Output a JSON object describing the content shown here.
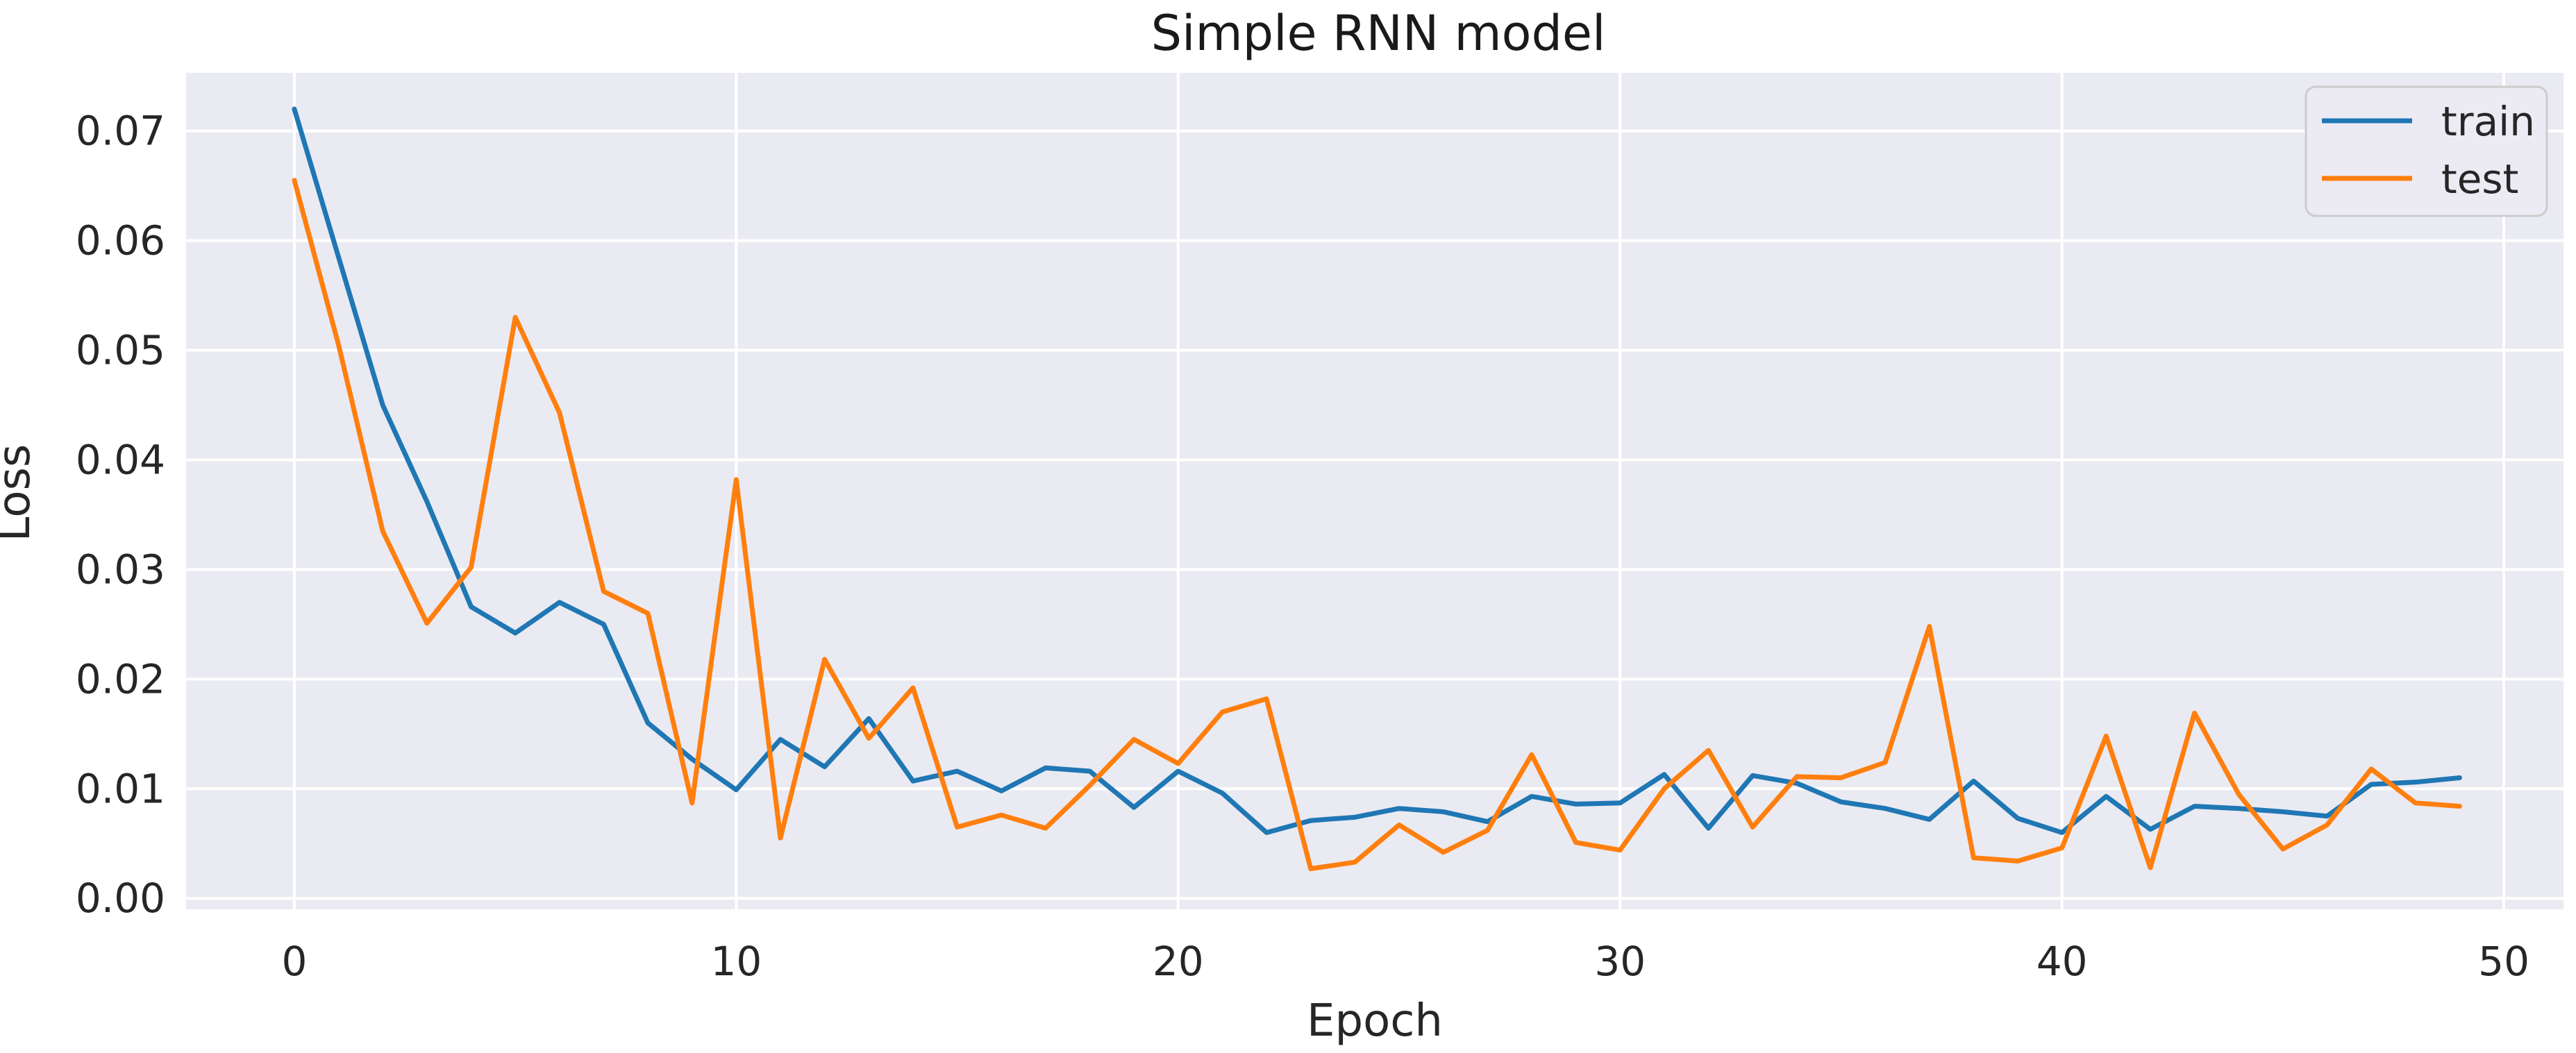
{
  "figure": {
    "title": "Simple RNN model"
  },
  "legend": {
    "position": "upper right",
    "items": [
      {
        "label": "train",
        "color": "#1f77b4"
      },
      {
        "label": "test",
        "color": "#ff7f0e"
      }
    ]
  },
  "style": {
    "plot_background": "#eaeaf2",
    "gridline_color": "#ffffff",
    "text_color": "#262626",
    "legend_face": "#ecebf3",
    "legend_edge": "#cccccc",
    "train_color": "#1f77b4",
    "test_color": "#ff7f0e"
  },
  "chart_data": {
    "type": "line",
    "title": "Simple RNN model",
    "xlabel": "Epoch",
    "ylabel": "Loss",
    "grid": "on",
    "legend_position": "upper right",
    "xlim": [
      -2.45,
      51.35
    ],
    "ylim": [
      -0.001,
      0.0753
    ],
    "xticks": {
      "values": [
        0,
        10,
        20,
        30,
        40,
        50
      ],
      "labels": [
        "0",
        "10",
        "20",
        "30",
        "40",
        "50"
      ]
    },
    "yticks": {
      "values": [
        0.0,
        0.01,
        0.02,
        0.03,
        0.04,
        0.05,
        0.06,
        0.07
      ],
      "labels": [
        "0.00",
        "0.01",
        "0.02",
        "0.03",
        "0.04",
        "0.05",
        "0.06",
        "0.07"
      ]
    },
    "x": [
      0,
      1,
      2,
      3,
      4,
      5,
      6,
      7,
      8,
      9,
      10,
      11,
      12,
      13,
      14,
      15,
      16,
      17,
      18,
      19,
      20,
      21,
      22,
      23,
      24,
      25,
      26,
      27,
      28,
      29,
      30,
      31,
      32,
      33,
      34,
      35,
      36,
      37,
      38,
      39,
      40,
      41,
      42,
      43,
      44,
      45,
      46,
      47,
      48,
      49
    ],
    "series": [
      {
        "name": "train",
        "color": "#1f77b4",
        "values": [
          0.072,
          0.0585,
          0.045,
          0.0362,
          0.0266,
          0.0242,
          0.027,
          0.025,
          0.016,
          0.0127,
          0.0099,
          0.0145,
          0.012,
          0.0164,
          0.0107,
          0.0116,
          0.0098,
          0.0119,
          0.0116,
          0.0083,
          0.0116,
          0.0096,
          0.006,
          0.0071,
          0.0074,
          0.0082,
          0.0079,
          0.007,
          0.0093,
          0.0086,
          0.0087,
          0.0113,
          0.0064,
          0.0112,
          0.0105,
          0.0088,
          0.0082,
          0.0072,
          0.0107,
          0.0073,
          0.006,
          0.0093,
          0.0063,
          0.0084,
          0.0082,
          0.0079,
          0.0075,
          0.0104,
          0.0106,
          0.011
        ]
      },
      {
        "name": "test",
        "color": "#ff7f0e",
        "values": [
          0.0655,
          0.0505,
          0.0335,
          0.0251,
          0.0302,
          0.053,
          0.0443,
          0.028,
          0.026,
          0.0087,
          0.0382,
          0.0055,
          0.0218,
          0.0146,
          0.0192,
          0.0065,
          0.0076,
          0.0064,
          0.0103,
          0.0145,
          0.0123,
          0.017,
          0.0182,
          0.0027,
          0.0033,
          0.0067,
          0.0042,
          0.0062,
          0.0131,
          0.0051,
          0.0044,
          0.01,
          0.0135,
          0.0065,
          0.0111,
          0.011,
          0.0124,
          0.0248,
          0.0037,
          0.0034,
          0.0046,
          0.0148,
          0.0028,
          0.0169,
          0.0095,
          0.0045,
          0.0067,
          0.0118,
          0.0087,
          0.0084
        ]
      }
    ]
  }
}
